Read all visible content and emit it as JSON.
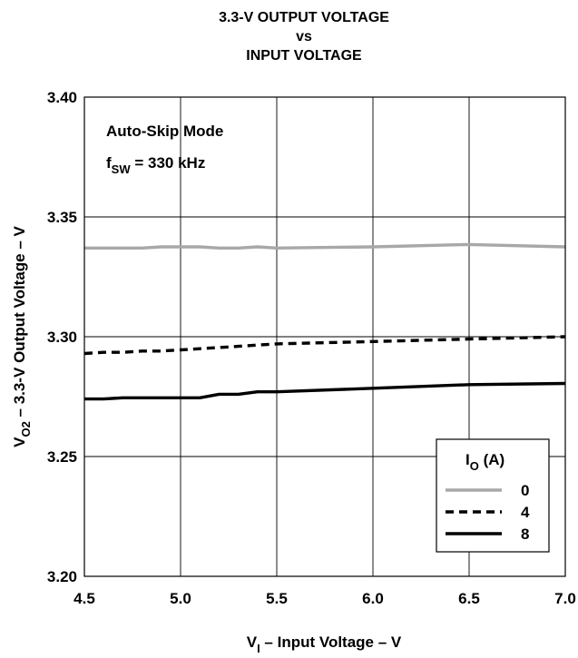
{
  "chart_data": {
    "type": "line",
    "title": [
      "3.3-V OUTPUT VOLTAGE",
      "vs",
      "INPUT VOLTAGE"
    ],
    "xlabel": {
      "symbol": "V",
      "sub": "I",
      "text": " – Input Voltage  –  V"
    },
    "ylabel": {
      "symbol": "V",
      "sub": "O2",
      "text": " – 3.3-V Output Voltage  –  V"
    },
    "xlim": [
      4.5,
      7.0
    ],
    "ylim": [
      3.2,
      3.4
    ],
    "xticks": [
      "4.5",
      "5.0",
      "5.5",
      "6.0",
      "6.5",
      "7.0"
    ],
    "yticks": [
      "3.20",
      "3.25",
      "3.30",
      "3.35",
      "3.40"
    ],
    "grid": true,
    "annotations": {
      "mode": "Auto-Skip Mode",
      "fsw_symbol": "f",
      "fsw_sub": "SW",
      "fsw_value": " = 330 kHz"
    },
    "legend": {
      "placement": "bottom-right",
      "title_symbol": "I",
      "title_sub": "O",
      "title_unit": " (A)"
    },
    "series": [
      {
        "name": "0",
        "color": "#a8a8a8",
        "style": "solid",
        "x": [
          4.5,
          4.6,
          4.7,
          4.8,
          4.9,
          5.0,
          5.1,
          5.2,
          5.3,
          5.4,
          5.5,
          6.0,
          6.5,
          7.0
        ],
        "y": [
          3.337,
          3.337,
          3.337,
          3.337,
          3.3375,
          3.3375,
          3.3375,
          3.337,
          3.337,
          3.3375,
          3.337,
          3.3375,
          3.3385,
          3.3375
        ]
      },
      {
        "name": "4",
        "color": "#000000",
        "style": "dashed",
        "x": [
          4.5,
          4.6,
          4.7,
          4.8,
          4.9,
          5.0,
          5.1,
          5.2,
          5.3,
          5.4,
          5.5,
          6.0,
          6.5,
          7.0
        ],
        "y": [
          3.293,
          3.2935,
          3.2935,
          3.294,
          3.294,
          3.2945,
          3.295,
          3.2955,
          3.296,
          3.2965,
          3.297,
          3.298,
          3.299,
          3.3
        ]
      },
      {
        "name": "8",
        "color": "#000000",
        "style": "solid",
        "x": [
          4.5,
          4.6,
          4.7,
          4.8,
          4.9,
          5.0,
          5.1,
          5.2,
          5.3,
          5.4,
          5.5,
          6.0,
          6.5,
          7.0
        ],
        "y": [
          3.274,
          3.274,
          3.2745,
          3.2745,
          3.2745,
          3.2745,
          3.2745,
          3.276,
          3.276,
          3.277,
          3.277,
          3.2785,
          3.28,
          3.2805
        ]
      }
    ]
  }
}
